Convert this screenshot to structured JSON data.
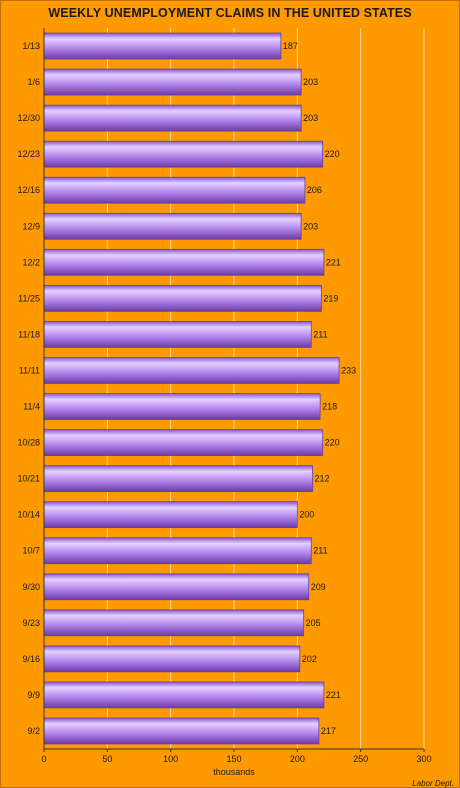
{
  "chart_data": {
    "type": "bar",
    "orientation": "horizontal",
    "title": "WEEKLY UNEMPLOYMENT CLAIMS IN THE UNITED STATES",
    "xlabel": "thousands",
    "ylabel": "",
    "source": "Labor Dept.",
    "categories": [
      "1/13",
      "1/6",
      "12/30",
      "12/23",
      "12/16",
      "12/9",
      "12/2",
      "11/25",
      "11/18",
      "11/11",
      "11/4",
      "10/28",
      "10/21",
      "10/14",
      "10/7",
      "9/30",
      "9/23",
      "9/16",
      "9/9",
      "9/2"
    ],
    "values": [
      187,
      203,
      203,
      220,
      206,
      203,
      221,
      219,
      211,
      233,
      218,
      220,
      212,
      200,
      211,
      209,
      205,
      202,
      221,
      217
    ],
    "xlim": [
      0,
      300
    ],
    "xticks": [
      0,
      50,
      100,
      150,
      200,
      250,
      300
    ],
    "grid": true,
    "bar_color": "#b98cf0",
    "bar_edge_color": "#6a3fa0",
    "background_color": "#ff9900"
  }
}
